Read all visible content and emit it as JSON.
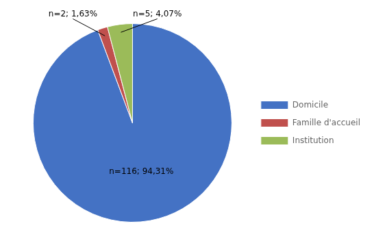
{
  "chart_data": {
    "type": "pie",
    "categories": [
      "Domicile",
      "Famille d'accueil",
      "Institution"
    ],
    "values": [
      116,
      2,
      5
    ],
    "colors": [
      "#4472C4",
      "#C0504D",
      "#9BBB59"
    ],
    "annotations": [
      "n=116; 94,31%",
      "n=2; 1,63%",
      "n=5; 4,07%"
    ],
    "legend": "right"
  }
}
